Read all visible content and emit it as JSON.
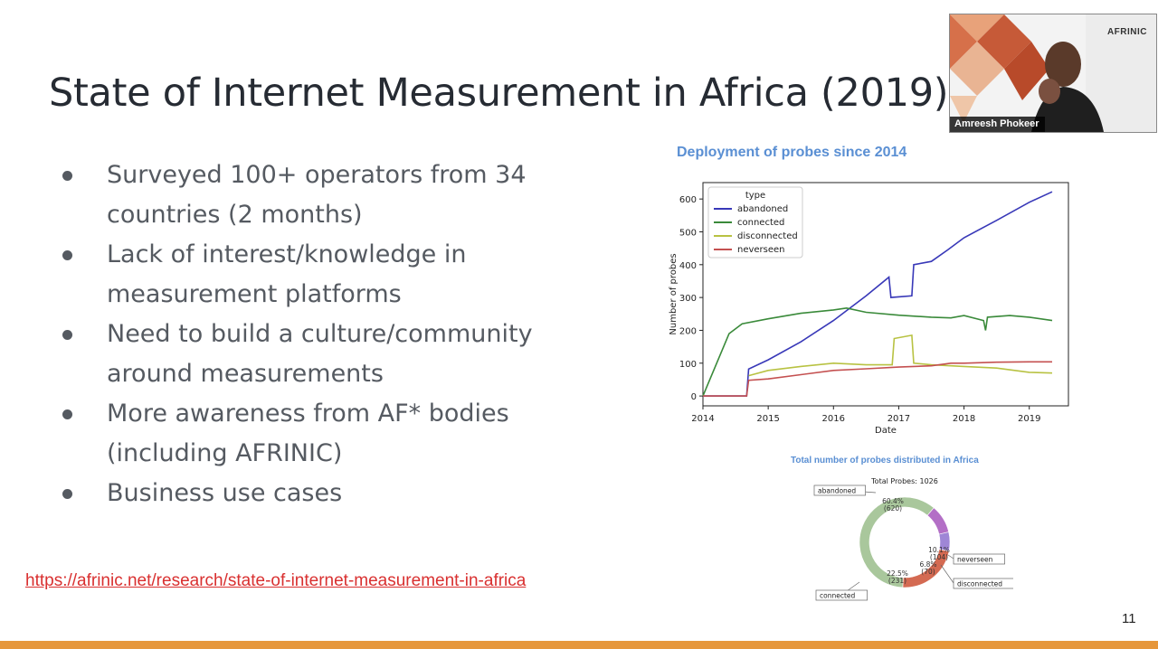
{
  "slide": {
    "title": "State of Internet Measurement in Africa (2019)",
    "bullets": [
      "Surveyed 100+ operators from 34 countries (2 months)",
      "Lack of interest/knowledge in measurement platforms",
      "Need to build a culture/community around measurements",
      "More awareness from AF* bodies (including AFRINIC)",
      "Business use cases"
    ],
    "link": "https://afrinic.net/research/state-of-internet-measurement-in-africa",
    "page_number": "11",
    "accent_color": "#e6973c"
  },
  "video": {
    "participant_name": "Amreesh Phokeer",
    "logo_text": "AFRINIC"
  },
  "chart_data": [
    {
      "type": "line",
      "title": "Deployment of probes since 2014",
      "xlabel": "Date",
      "ylabel": "Number of probes",
      "xlim": [
        2014,
        2019.6
      ],
      "ylim": [
        -30,
        650
      ],
      "xticks": [
        "2014",
        "2015",
        "2016",
        "2017",
        "2018",
        "2019"
      ],
      "yticks": [
        "0",
        "100",
        "200",
        "300",
        "400",
        "500",
        "600"
      ],
      "legend_title": "type",
      "legend_position": "top-left",
      "series": [
        {
          "name": "abandoned",
          "color": "#3838b8",
          "points": [
            [
              2014,
              0
            ],
            [
              2014.67,
              0
            ],
            [
              2014.7,
              82
            ],
            [
              2015,
              110
            ],
            [
              2015.5,
              165
            ],
            [
              2016,
              230
            ],
            [
              2016.5,
              305
            ],
            [
              2016.85,
              362
            ],
            [
              2016.88,
              300
            ],
            [
              2017.2,
              305
            ],
            [
              2017.23,
              400
            ],
            [
              2017.5,
              410
            ],
            [
              2017.75,
              445
            ],
            [
              2018,
              482
            ],
            [
              2018.5,
              535
            ],
            [
              2019,
              590
            ],
            [
              2019.35,
              622
            ]
          ]
        },
        {
          "name": "connected",
          "color": "#3a8a3a",
          "points": [
            [
              2014,
              0
            ],
            [
              2014.4,
              190
            ],
            [
              2014.6,
              220
            ],
            [
              2015,
              235
            ],
            [
              2015.5,
              252
            ],
            [
              2016,
              262
            ],
            [
              2016.2,
              268
            ],
            [
              2016.5,
              255
            ],
            [
              2017,
              246
            ],
            [
              2017.5,
              240
            ],
            [
              2017.8,
              238
            ],
            [
              2018,
              245
            ],
            [
              2018.3,
              230
            ],
            [
              2018.33,
              200
            ],
            [
              2018.36,
              240
            ],
            [
              2018.7,
              245
            ],
            [
              2019,
              240
            ],
            [
              2019.35,
              230
            ]
          ]
        },
        {
          "name": "disconnected",
          "color": "#b8c242",
          "points": [
            [
              2014.7,
              62
            ],
            [
              2015,
              78
            ],
            [
              2015.5,
              90
            ],
            [
              2016,
              100
            ],
            [
              2016.5,
              95
            ],
            [
              2016.9,
              95
            ],
            [
              2016.93,
              175
            ],
            [
              2017.2,
              185
            ],
            [
              2017.23,
              100
            ],
            [
              2017.5,
              95
            ],
            [
              2018,
              90
            ],
            [
              2018.5,
              85
            ],
            [
              2019,
              72
            ],
            [
              2019.35,
              70
            ]
          ]
        },
        {
          "name": "neverseen",
          "color": "#c45050",
          "points": [
            [
              2014,
              0
            ],
            [
              2014.67,
              0
            ],
            [
              2014.7,
              48
            ],
            [
              2015,
              52
            ],
            [
              2015.5,
              65
            ],
            [
              2016,
              78
            ],
            [
              2016.5,
              83
            ],
            [
              2017,
              88
            ],
            [
              2017.5,
              92
            ],
            [
              2017.8,
              100
            ],
            [
              2018,
              100
            ],
            [
              2018.5,
              103
            ],
            [
              2019,
              104
            ],
            [
              2019.35,
              104
            ]
          ]
        }
      ]
    },
    {
      "type": "pie",
      "title": "Total number of probes distributed in Africa",
      "subtitle": "Total Probes: 1026",
      "slices": [
        {
          "label": "abandoned",
          "percent": "60.4%",
          "count": "(620)",
          "value": 620,
          "color": "#a9c79c"
        },
        {
          "label": "neverseen",
          "percent": "10.1%",
          "count": "(104)",
          "value": 104,
          "color": "#b36fc6"
        },
        {
          "label": "disconnected",
          "percent": "6.8%",
          "count": "(70)",
          "value": 70,
          "color": "#9f86d6"
        },
        {
          "label": "connected",
          "percent": "22.5%",
          "count": "(231)",
          "value": 231,
          "color": "#d46a52"
        }
      ]
    }
  ]
}
